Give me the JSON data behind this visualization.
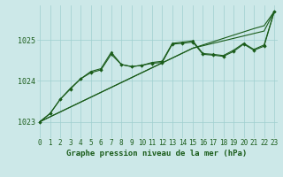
{
  "title": "Graphe pression niveau de la mer (hPa)",
  "bg_color": "#cce8e8",
  "grid_color": "#9fcfcf",
  "line_color": "#1a5c1a",
  "x_ticks": [
    0,
    1,
    2,
    3,
    4,
    5,
    6,
    7,
    8,
    9,
    10,
    11,
    12,
    13,
    14,
    15,
    16,
    17,
    18,
    19,
    20,
    21,
    22,
    23
  ],
  "y_ticks": [
    1023,
    1024,
    1025
  ],
  "ylim": [
    1022.6,
    1025.85
  ],
  "xlim": [
    -0.3,
    23.3
  ],
  "series_straight1": [
    1023.0,
    1023.12,
    1023.24,
    1023.36,
    1023.48,
    1023.6,
    1023.72,
    1023.84,
    1023.96,
    1024.08,
    1024.2,
    1024.32,
    1024.44,
    1024.56,
    1024.68,
    1024.8,
    1024.86,
    1024.92,
    1024.98,
    1025.04,
    1025.1,
    1025.16,
    1025.22,
    1025.7
  ],
  "series_straight2": [
    1023.0,
    1023.12,
    1023.24,
    1023.36,
    1023.48,
    1023.6,
    1023.72,
    1023.84,
    1023.96,
    1024.08,
    1024.2,
    1024.32,
    1024.44,
    1024.56,
    1024.68,
    1024.8,
    1024.88,
    1024.96,
    1025.04,
    1025.12,
    1025.2,
    1025.28,
    1025.35,
    1025.7
  ],
  "series_wavy1": [
    1023.0,
    1023.2,
    1023.55,
    1023.8,
    1024.05,
    1024.2,
    1024.27,
    1024.65,
    1024.4,
    1024.35,
    1024.38,
    1024.43,
    1024.45,
    1024.9,
    1024.92,
    1024.95,
    1024.65,
    1024.63,
    1024.6,
    1024.72,
    1024.9,
    1024.75,
    1024.85,
    1025.7
  ],
  "series_wavy2": [
    1023.0,
    1023.2,
    1023.55,
    1023.82,
    1024.05,
    1024.23,
    1024.3,
    1024.7,
    1024.4,
    1024.35,
    1024.38,
    1024.45,
    1024.48,
    1024.92,
    1024.95,
    1024.98,
    1024.67,
    1024.65,
    1024.62,
    1024.75,
    1024.92,
    1024.77,
    1024.88,
    1025.7
  ],
  "xlabel_fontsize": 6.5,
  "tick_fontsize": 5.5
}
